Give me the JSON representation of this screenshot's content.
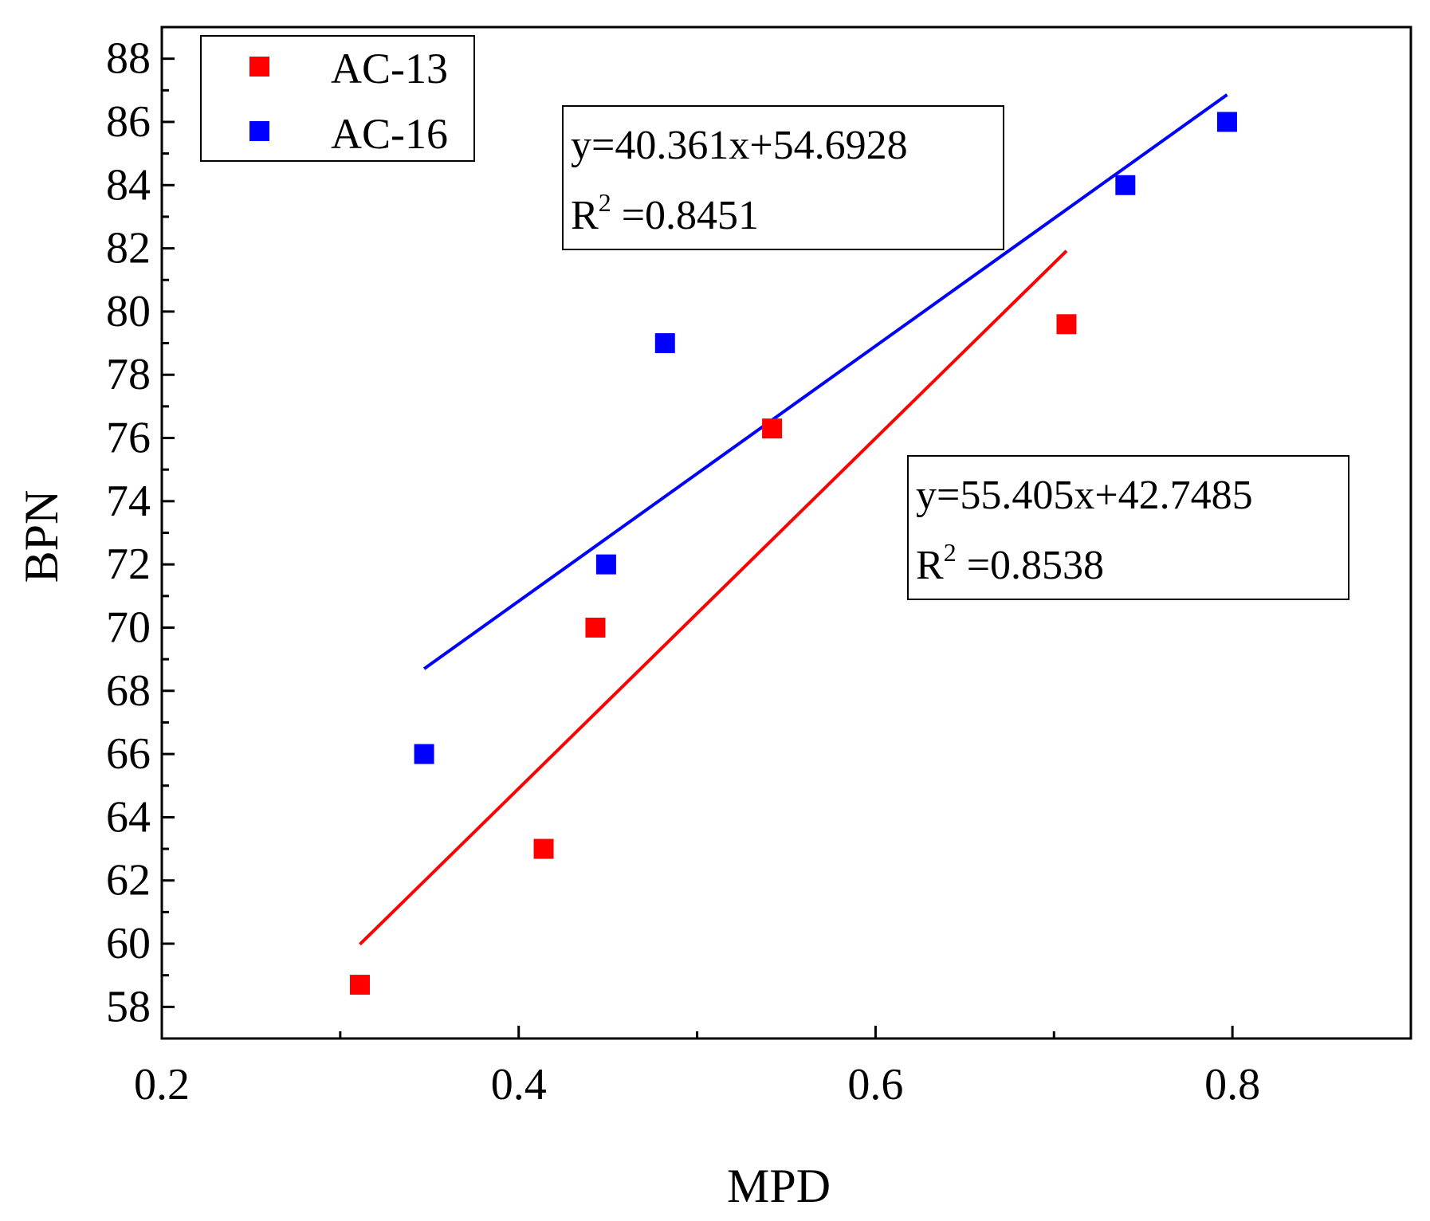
{
  "chart_data": {
    "type": "scatter",
    "xlabel": "MPD",
    "ylabel": "BPN",
    "xlim": [
      0.2,
      0.9
    ],
    "ylim": [
      57,
      89
    ],
    "x_ticks": [
      0.2,
      0.4,
      0.6,
      0.8
    ],
    "x_tick_labels": [
      "0.2",
      "0.4",
      "0.6",
      "0.8"
    ],
    "y_ticks": [
      58,
      60,
      62,
      64,
      66,
      68,
      70,
      72,
      74,
      76,
      78,
      80,
      82,
      84,
      86,
      88
    ],
    "y_tick_labels": [
      "58",
      "60",
      "62",
      "64",
      "66",
      "68",
      "70",
      "72",
      "74",
      "76",
      "78",
      "80",
      "82",
      "84",
      "86",
      "88"
    ],
    "grid": false,
    "legend_position": "top-left",
    "series": [
      {
        "name": "AC-13",
        "color": "#ff0000",
        "x": [
          0.311,
          0.414,
          0.443,
          0.542,
          0.707
        ],
        "y": [
          58.7,
          63.0,
          70.0,
          76.3,
          79.6
        ],
        "fit": {
          "slope": 55.405,
          "intercept": 42.7485,
          "x_range": [
            0.311,
            0.707
          ],
          "equation": "y=55.405x+42.7485",
          "r2_prefix": "R",
          "r2_exp": "2",
          "r2_value": " =0.8538"
        }
      },
      {
        "name": "AC-16",
        "color": "#0000ff",
        "x": [
          0.347,
          0.449,
          0.482,
          0.74,
          0.797
        ],
        "y": [
          66.0,
          72.0,
          79.0,
          84.0,
          86.0
        ],
        "fit": {
          "slope": 40.361,
          "intercept": 54.6928,
          "x_range": [
            0.347,
            0.797
          ],
          "equation": "y=40.361x+54.6928",
          "r2_prefix": "R",
          "r2_exp": "2",
          "r2_value": " =0.8451"
        }
      }
    ]
  }
}
